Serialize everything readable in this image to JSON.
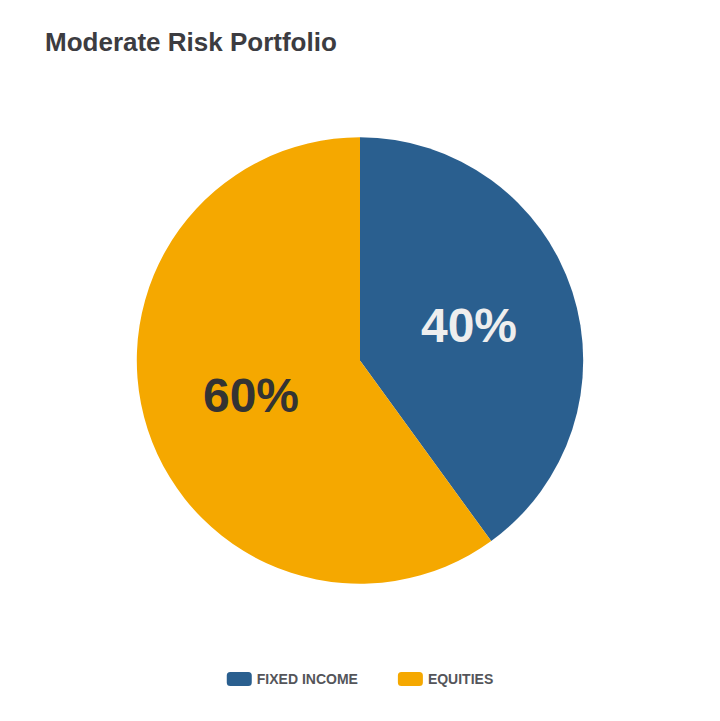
{
  "chart_data": {
    "type": "pie",
    "title": "Moderate Risk Portfolio",
    "categories": [
      "FIXED INCOME",
      "EQUITIES"
    ],
    "values": [
      40,
      60
    ],
    "value_labels": [
      "40%",
      "60%"
    ],
    "colors": [
      "#2a5f8f",
      "#f5a800"
    ],
    "data_labels": true,
    "legend": "bottom"
  }
}
